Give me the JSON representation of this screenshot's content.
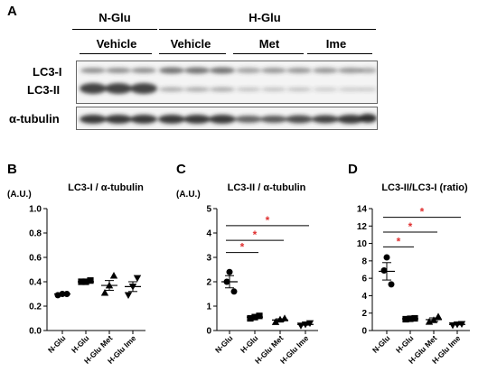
{
  "panel_a": {
    "letter": "A",
    "groups": [
      {
        "label": "N-Glu",
        "subgroups": [
          "Vehicle"
        ]
      },
      {
        "label": "H-Glu",
        "subgroups": [
          "Vehicle",
          "Met",
          "Ime"
        ]
      }
    ],
    "rows": [
      "LC3-I",
      "LC3-II",
      "α-tubulin"
    ]
  },
  "chart_data": [
    {
      "letter": "B",
      "type": "scatter",
      "title": "LC3-I / α-tubulin",
      "unit_label": "(A.U.)",
      "categories": [
        "N-Glu",
        "H-Glu",
        "H-Glu Met",
        "H-Glu Ime"
      ],
      "markers": [
        "circle",
        "square",
        "triangle",
        "triangle-down"
      ],
      "ylim": [
        0,
        1.0
      ],
      "yticks": [
        "0.0",
        "0.2",
        "0.4",
        "0.6",
        "0.8",
        "1.0"
      ],
      "ytick_values": [
        0,
        0.2,
        0.4,
        0.6,
        0.8,
        1.0
      ],
      "points": [
        [
          0.29,
          0.3,
          0.3
        ],
        [
          0.4,
          0.4,
          0.41
        ],
        [
          0.31,
          0.37,
          0.45
        ],
        [
          0.29,
          0.36,
          0.43
        ]
      ],
      "mean": [
        0.3,
        0.4,
        0.37,
        0.36
      ],
      "sem": [
        0.005,
        0.005,
        0.04,
        0.04
      ],
      "significance": []
    },
    {
      "letter": "C",
      "type": "scatter",
      "title": "LC3-II / α-tubulin",
      "unit_label": "(A.U.)",
      "categories": [
        "N-Glu",
        "H-Glu",
        "H-Glu Met",
        "H-Glu Ime"
      ],
      "markers": [
        "circle",
        "square",
        "triangle",
        "triangle-down"
      ],
      "ylim": [
        0,
        5
      ],
      "yticks": [
        "0",
        "1",
        "2",
        "3",
        "4",
        "5"
      ],
      "ytick_values": [
        0,
        1,
        2,
        3,
        4,
        5
      ],
      "points": [
        [
          1.6,
          2.0,
          2.4
        ],
        [
          0.5,
          0.55,
          0.6
        ],
        [
          0.35,
          0.45,
          0.5
        ],
        [
          0.2,
          0.25,
          0.3
        ]
      ],
      "mean": [
        2.0,
        0.55,
        0.43,
        0.25
      ],
      "sem": [
        0.25,
        0.03,
        0.05,
        0.03
      ],
      "significance": [
        {
          "from": 0,
          "to": 1,
          "y": 3.2,
          "label": "*"
        },
        {
          "from": 0,
          "to": 2,
          "y": 3.7,
          "label": "*"
        },
        {
          "from": 0,
          "to": 3,
          "y": 4.3,
          "label": "*"
        }
      ]
    },
    {
      "letter": "D",
      "type": "scatter",
      "title": "LC3-II/LC3-I (ratio)",
      "unit_label": "",
      "categories": [
        "N-Glu",
        "H-Glu",
        "H-Glu Met",
        "H-Glu Ime"
      ],
      "markers": [
        "circle",
        "square",
        "triangle",
        "triangle-down"
      ],
      "ylim": [
        0,
        14
      ],
      "yticks": [
        "0",
        "2",
        "4",
        "6",
        "8",
        "10",
        "12",
        "14"
      ],
      "ytick_values": [
        0,
        2,
        4,
        6,
        8,
        10,
        12,
        14
      ],
      "points": [
        [
          5.3,
          6.9,
          8.4
        ],
        [
          1.3,
          1.35,
          1.4
        ],
        [
          1.0,
          1.2,
          1.6
        ],
        [
          0.6,
          0.7,
          0.75
        ]
      ],
      "mean": [
        6.8,
        1.35,
        1.25,
        0.7
      ],
      "sem": [
        1.0,
        0.05,
        0.2,
        0.05
      ],
      "significance": [
        {
          "from": 0,
          "to": 1,
          "y": 9.6,
          "label": "*"
        },
        {
          "from": 0,
          "to": 2,
          "y": 11.3,
          "label": "*"
        },
        {
          "from": 0,
          "to": 3,
          "y": 13.0,
          "label": "*"
        }
      ]
    }
  ],
  "colors": {
    "sig": "#e03030",
    "ink": "#000000",
    "blot_band": "#2a2a2a"
  }
}
